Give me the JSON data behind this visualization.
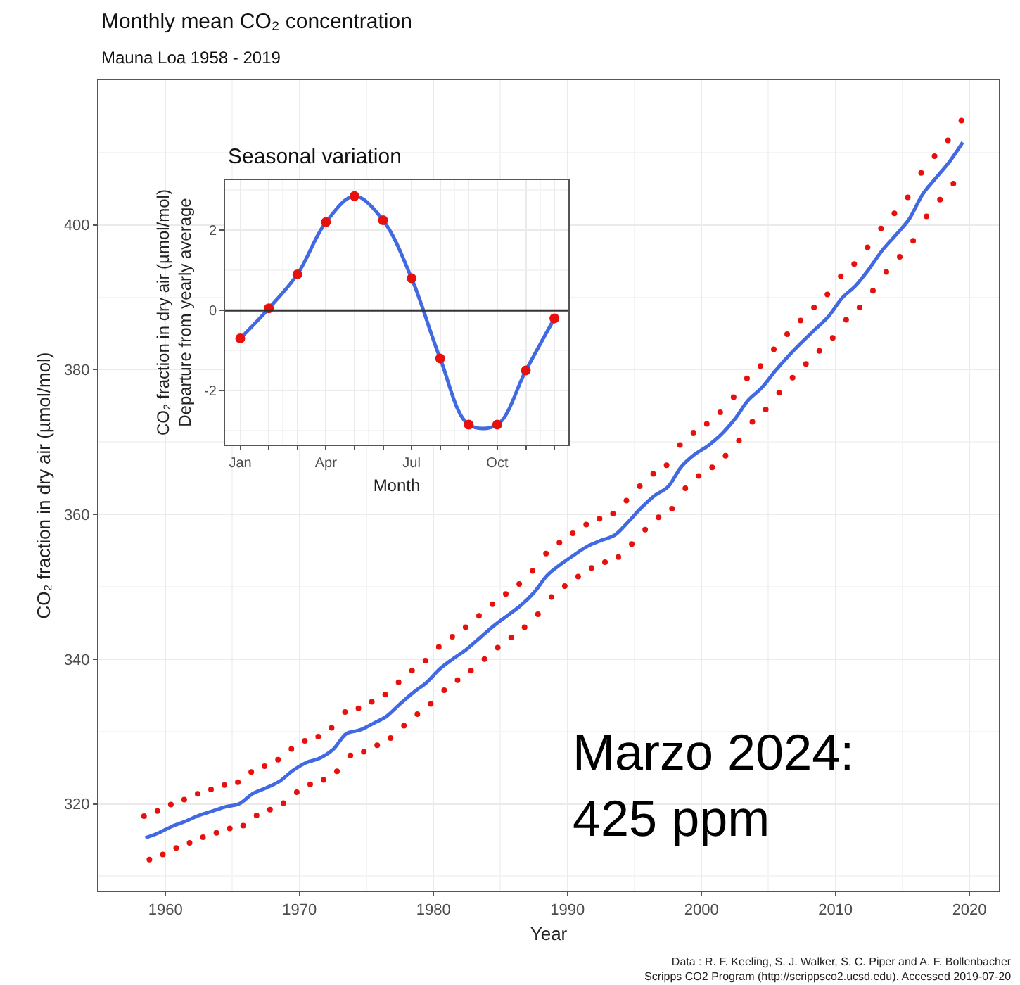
{
  "chart_data": [
    {
      "type": "scatter",
      "title": "Monthly mean CO₂ concentration",
      "subtitle": "Mauna Loa 1958 - 2019",
      "xlabel": "Year",
      "ylabel": "CO₂ fraction in dry air (µmol/mol)",
      "annotations": [
        "Marzo 2024:\n425 ppm",
        "Data : R. F. Keeling, S. J. Walker, S. C. Piper and A. F. Bollenbacher\nScripps CO2 Program (http://scrippsco2.ucsd.edu). Accessed 2019-07-20"
      ],
      "xlim": [
        1955,
        2022.2
      ],
      "ylim": [
        308,
        420
      ],
      "xticks": [
        1960,
        1970,
        1980,
        1990,
        2000,
        2010,
        2020
      ],
      "yticks": [
        320,
        340,
        360,
        380,
        400
      ],
      "grid": true,
      "series": [
        {
          "marker": "circle",
          "color": "#e8100c",
          "x": [
            1958.4,
            1958.8,
            1959.4,
            1959.8,
            1960.4,
            1960.8,
            1961.4,
            1961.8,
            1962.4,
            1962.8,
            1963.4,
            1963.8,
            1964.4,
            1964.8,
            1965.4,
            1965.8,
            1966.4,
            1966.8,
            1967.4,
            1967.8,
            1968.4,
            1968.8,
            1969.4,
            1969.8,
            1970.4,
            1970.8,
            1971.4,
            1971.8,
            1972.4,
            1972.8,
            1973.4,
            1973.8,
            1974.4,
            1974.8,
            1975.4,
            1975.8,
            1976.4,
            1976.8,
            1977.4,
            1977.8,
            1978.4,
            1978.8,
            1979.4,
            1979.8,
            1980.4,
            1980.8,
            1981.4,
            1981.8,
            1982.4,
            1982.8,
            1983.4,
            1983.8,
            1984.4,
            1984.8,
            1985.4,
            1985.8,
            1986.4,
            1986.8,
            1987.4,
            1987.8,
            1988.4,
            1988.8,
            1989.4,
            1989.8,
            1990.4,
            1990.8,
            1991.4,
            1991.8,
            1992.4,
            1992.8,
            1993.4,
            1993.8,
            1994.4,
            1994.8,
            1995.4,
            1995.8,
            1996.4,
            1996.8,
            1997.4,
            1997.8,
            1998.4,
            1998.8,
            1999.4,
            1999.8,
            2000.4,
            2000.8,
            2001.4,
            2001.8,
            2002.4,
            2002.8,
            2003.4,
            2003.8,
            2004.4,
            2004.8,
            2005.4,
            2005.8,
            2006.4,
            2006.8,
            2007.4,
            2007.8,
            2008.4,
            2008.8,
            2009.4,
            2009.8,
            2010.4,
            2010.8,
            2011.4,
            2011.8,
            2012.4,
            2012.8,
            2013.4,
            2013.8,
            2014.4,
            2014.8,
            2015.4,
            2015.8,
            2016.4,
            2016.8,
            2017.4,
            2017.8,
            2018.4,
            2018.8,
            2019.4
          ],
          "values": [
            318.3,
            312.3,
            319.0,
            313.0,
            319.9,
            313.9,
            320.6,
            314.6,
            321.4,
            315.4,
            322.0,
            316.0,
            322.6,
            316.6,
            323.0,
            317.0,
            324.4,
            318.4,
            325.2,
            319.2,
            326.1,
            320.1,
            327.6,
            321.6,
            328.7,
            322.7,
            329.3,
            323.3,
            330.5,
            324.5,
            332.7,
            326.7,
            333.2,
            327.2,
            334.1,
            328.1,
            335.1,
            329.1,
            336.8,
            330.8,
            338.4,
            332.4,
            339.8,
            333.8,
            341.7,
            335.7,
            343.1,
            337.1,
            344.4,
            338.4,
            346.0,
            340.0,
            347.6,
            341.6,
            349.0,
            343.0,
            350.4,
            344.4,
            352.2,
            346.2,
            354.6,
            348.6,
            356.1,
            350.1,
            357.4,
            351.4,
            358.6,
            352.6,
            359.4,
            353.4,
            360.1,
            354.1,
            361.9,
            355.9,
            363.9,
            357.9,
            365.6,
            359.6,
            366.8,
            360.8,
            369.6,
            363.6,
            371.3,
            365.3,
            372.5,
            366.5,
            374.1,
            368.1,
            376.2,
            370.2,
            378.8,
            372.8,
            380.5,
            374.5,
            382.8,
            376.8,
            384.9,
            378.9,
            386.8,
            380.8,
            388.6,
            382.6,
            390.4,
            384.4,
            392.9,
            386.9,
            394.6,
            388.6,
            396.9,
            390.9,
            399.5,
            393.5,
            401.6,
            395.6,
            403.8,
            397.8,
            407.2,
            401.2,
            409.5,
            403.5,
            411.7,
            405.7,
            414.4
          ]
        },
        {
          "type": "line",
          "color": "#4169e1",
          "x": [
            1958.5,
            1959.5,
            1960.5,
            1961.5,
            1962.5,
            1963.5,
            1964.5,
            1965.5,
            1966.5,
            1967.5,
            1968.5,
            1969.5,
            1970.5,
            1971.5,
            1972.5,
            1973.5,
            1974.5,
            1975.5,
            1976.5,
            1977.5,
            1978.5,
            1979.5,
            1980.5,
            1981.5,
            1982.5,
            1983.5,
            1984.5,
            1985.5,
            1986.5,
            1987.5,
            1988.5,
            1989.5,
            1990.5,
            1991.5,
            1992.5,
            1993.5,
            1994.5,
            1995.5,
            1996.5,
            1997.5,
            1998.5,
            1999.5,
            2000.5,
            2001.5,
            2002.5,
            2003.5,
            2004.5,
            2005.5,
            2006.5,
            2007.5,
            2008.5,
            2009.5,
            2010.5,
            2011.5,
            2012.5,
            2013.5,
            2014.5,
            2015.5,
            2016.5,
            2017.5,
            2018.5,
            2019.5
          ],
          "values": [
            315.3,
            316.0,
            316.9,
            317.6,
            318.4,
            319.0,
            319.6,
            320.0,
            321.4,
            322.2,
            323.1,
            324.6,
            325.7,
            326.3,
            327.5,
            329.7,
            330.2,
            331.1,
            332.1,
            333.8,
            335.4,
            336.8,
            338.7,
            340.1,
            341.4,
            343.0,
            344.6,
            346.0,
            347.4,
            349.2,
            351.6,
            353.1,
            354.4,
            355.6,
            356.4,
            357.1,
            358.9,
            360.9,
            362.6,
            363.8,
            366.6,
            368.3,
            369.5,
            371.1,
            373.2,
            375.8,
            377.5,
            379.8,
            381.9,
            383.8,
            385.6,
            387.4,
            389.9,
            391.6,
            393.9,
            396.5,
            398.6,
            400.8,
            404.2,
            406.5,
            408.7,
            411.4
          ]
        }
      ]
    },
    {
      "type": "scatter",
      "title": "Seasonal variation",
      "xlabel": "Month",
      "ylabel": "CO₂ fraction in dry air (µmol/mol)\nDeparture from yearly average",
      "categories": [
        "Jan",
        null,
        null,
        "Apr",
        null,
        null,
        "Jul",
        null,
        null,
        "Oct",
        null,
        null
      ],
      "ylim": [
        -3.35,
        3.25
      ],
      "yticks": [
        -2,
        0,
        2
      ],
      "grid": true,
      "ref_lines": [
        {
          "axis": "y",
          "value": 0,
          "color": "#333333"
        }
      ],
      "series": [
        {
          "type": "line",
          "color": "#4169e1",
          "values": [
            -0.7,
            0.05,
            0.9,
            2.2,
            2.85,
            2.25,
            0.8,
            -1.2,
            -2.85,
            -2.85,
            -1.5,
            -0.2
          ]
        },
        {
          "marker": "circle",
          "color": "#e8100c",
          "values": [
            -0.7,
            0.05,
            0.9,
            2.2,
            2.85,
            2.25,
            0.8,
            -1.2,
            -2.85,
            -2.85,
            -1.5,
            -0.2
          ]
        }
      ]
    }
  ]
}
